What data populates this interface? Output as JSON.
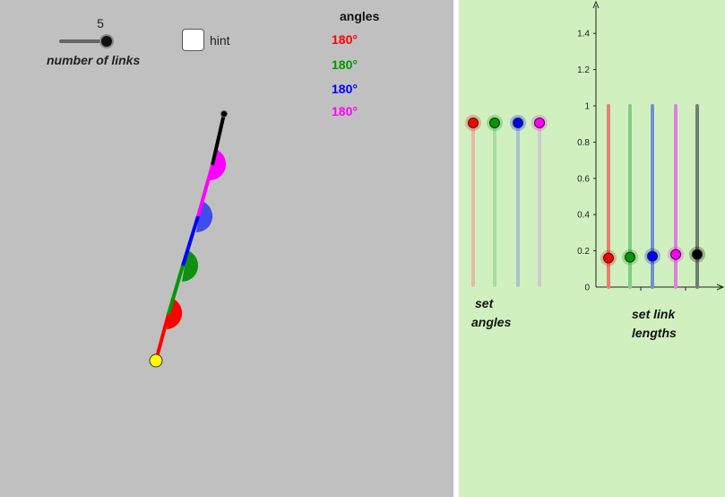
{
  "left_panel": {
    "number_of_links": {
      "value": "5",
      "label": "number of links",
      "slider_fraction": 1.0
    },
    "hint": {
      "label": "hint",
      "checked": false
    },
    "angles": {
      "title": "angles",
      "items": [
        {
          "text": "180°",
          "color": "#ff0000"
        },
        {
          "text": "180°",
          "color": "#009900"
        },
        {
          "text": "180°",
          "color": "#0000ff"
        },
        {
          "text": "180°",
          "color": "#ff00ff"
        }
      ]
    },
    "linkage": {
      "link_colors": [
        "#ff0000",
        "#009900",
        "#0000ff",
        "#ff00ff",
        "#000000"
      ],
      "base_joint_color": "#ffff00",
      "end_joint_color": "#000000"
    }
  },
  "right_panel": {
    "set_angles": {
      "label_line1": "set",
      "label_line2": "angles",
      "sliders": [
        {
          "color": "#ff0000",
          "track_color": "#e8b8a8",
          "value": 1
        },
        {
          "color": "#009900",
          "track_color": "#a8dca0",
          "value": 1
        },
        {
          "color": "#0000ff",
          "track_color": "#a8c4cc",
          "value": 1
        },
        {
          "color": "#ff00ff",
          "track_color": "#cccccc",
          "value": 1
        }
      ]
    },
    "set_link_lengths": {
      "label_line1": "set link",
      "label_line2": "lengths",
      "y_ticks": [
        "0",
        "0.2",
        "0.4",
        "0.6",
        "0.8",
        "1",
        "1.2",
        "1.4"
      ],
      "sliders": [
        {
          "color": "#ff0000",
          "track_color": "#e88070",
          "value": 0.16
        },
        {
          "color": "#009900",
          "track_color": "#80d080",
          "value": 0.165
        },
        {
          "color": "#0000ff",
          "track_color": "#7090d0",
          "value": 0.17
        },
        {
          "color": "#ff00ff",
          "track_color": "#e080e0",
          "value": 0.18
        },
        {
          "color": "#000000",
          "track_color": "#708070",
          "value": 0.18
        }
      ]
    }
  }
}
